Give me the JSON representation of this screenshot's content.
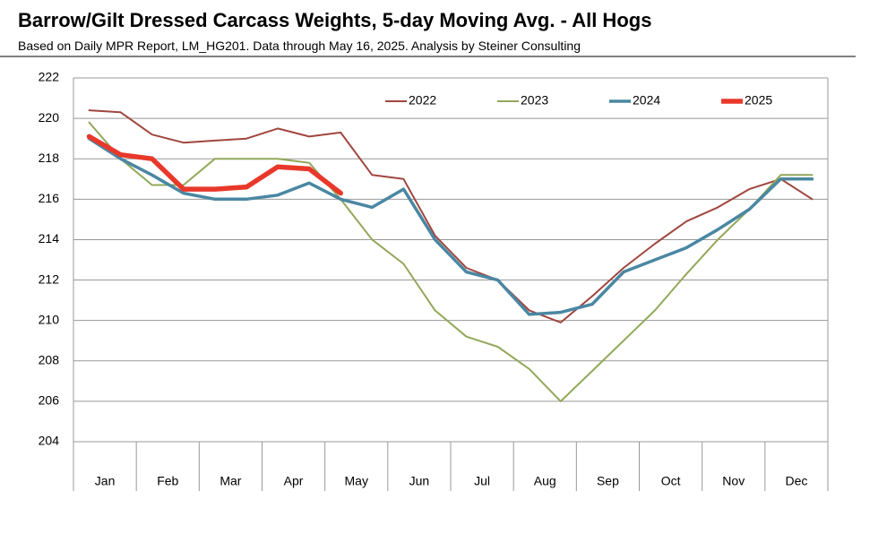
{
  "chart_data": {
    "type": "line",
    "title": "Barrow/Gilt Dressed Carcass Weights, 5-day Moving Avg. - All Hogs",
    "subtitle": "Based on Daily MPR Report, LM_HG201.  Data through May 16, 2025.  Analysis by Steiner Consulting",
    "categories": [
      "Jan",
      null,
      "Feb",
      null,
      "Mar",
      null,
      "Apr",
      null,
      "May",
      null,
      "Jun",
      null,
      "Jul",
      null,
      "Aug",
      null,
      "Sep",
      null,
      "Oct",
      null,
      "Nov",
      null,
      "Dec",
      null
    ],
    "ylim": [
      204,
      222
    ],
    "yticks": [
      204,
      206,
      208,
      210,
      212,
      214,
      216,
      218,
      220,
      222
    ],
    "grid": true,
    "legend": "top",
    "series": [
      {
        "name": "2022",
        "color": "#a0463f",
        "values": [
          220.4,
          220.3,
          219.2,
          218.8,
          218.9,
          219.0,
          219.5,
          219.1,
          219.3,
          217.2,
          217.0,
          214.2,
          212.6,
          212.0,
          210.5,
          209.9,
          211.2,
          212.6,
          213.8,
          214.9,
          215.6,
          216.5,
          217.0,
          216.0
        ]
      },
      {
        "name": "2023",
        "color": "#92a85a",
        "values": [
          219.8,
          218.0,
          216.7,
          216.7,
          218.0,
          218.0,
          218.0,
          217.8,
          216.0,
          214.0,
          212.8,
          210.5,
          209.2,
          208.7,
          207.6,
          206.0,
          207.5,
          209.0,
          210.5,
          212.3,
          214.0,
          215.5,
          217.2,
          217.2
        ]
      },
      {
        "name": "2024",
        "color": "#4a87a2",
        "values": [
          219.0,
          218.0,
          217.2,
          216.3,
          216.0,
          216.0,
          216.2,
          216.8,
          216.0,
          215.6,
          216.5,
          214.0,
          212.4,
          212.0,
          210.3,
          210.4,
          210.8,
          212.4,
          213.0,
          213.6,
          214.5,
          215.5,
          217.0,
          217.0
        ]
      },
      {
        "name": "2025",
        "color": "#e8382a",
        "values": [
          219.1,
          218.2,
          218.0,
          216.5,
          216.5,
          216.6,
          217.6,
          217.5,
          216.3,
          null,
          null,
          null,
          null,
          null,
          null,
          null,
          null,
          null,
          null,
          null,
          null,
          null,
          null,
          null
        ]
      }
    ]
  }
}
